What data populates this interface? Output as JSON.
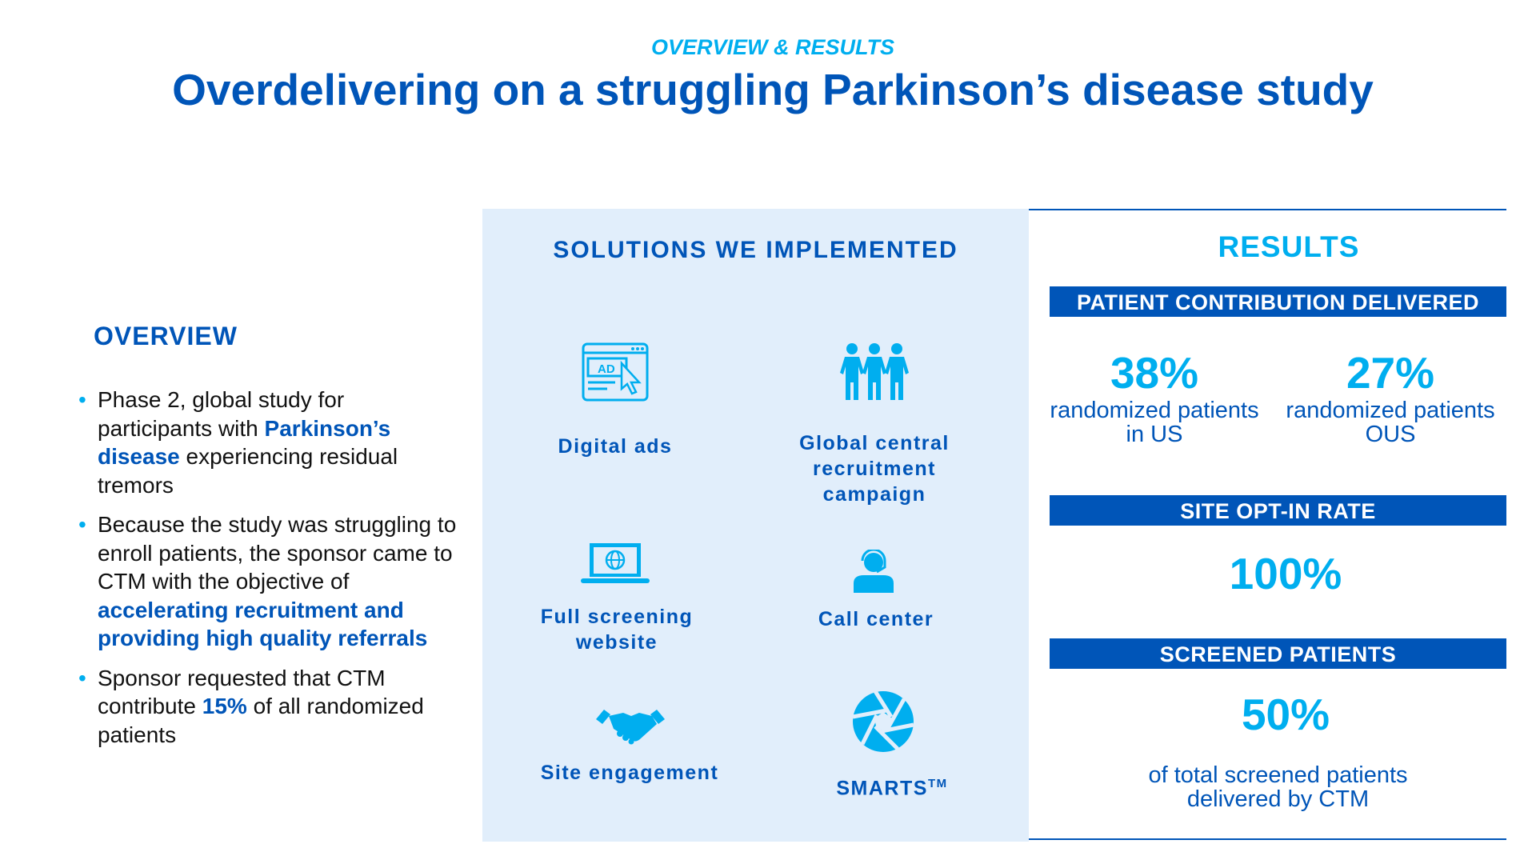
{
  "header": {
    "subtitle": "OVERVIEW & RESULTS",
    "title": "Overdelivering on a struggling Parkinson’s disease study"
  },
  "overview": {
    "heading": "OVERVIEW",
    "bullets": [
      [
        {
          "t": "Phase 2, global study for participants with "
        },
        {
          "t": "Parkinson’s disease",
          "b": true
        },
        {
          "t": " experiencing residual tremors"
        }
      ],
      [
        {
          "t": "Because the study was struggling to enroll patients, the sponsor came to CTM with the objective of "
        },
        {
          "t": "accelerating recruitment and providing high quality referrals",
          "b": true
        }
      ],
      [
        {
          "t": "Sponsor requested that CTM contribute "
        },
        {
          "t": "15%",
          "b": true
        },
        {
          "t": " of all randomized patients"
        }
      ]
    ]
  },
  "solutions": {
    "heading": "SOLUTIONS WE IMPLEMENTED",
    "items": [
      {
        "label": "Digital ads",
        "icon": "ad-click-icon"
      },
      {
        "label": "Global central recruitment campaign",
        "icon": "people-group-icon"
      },
      {
        "label": "Full screening website",
        "icon": "laptop-globe-icon"
      },
      {
        "label": "Call center",
        "icon": "headset-agent-icon"
      },
      {
        "label": "Site engagement",
        "icon": "handshake-icon"
      },
      {
        "label": "SMARTS",
        "sup": "TM",
        "icon": "aperture-icon"
      }
    ]
  },
  "results": {
    "heading": "RESULTS",
    "patient_contribution": {
      "title": "PATIENT CONTRIBUTION DELIVERED",
      "us_value": "38%",
      "us_line1": "randomized patients",
      "us_line2": "in US",
      "ous_value": "27%",
      "ous_line1": "randomized patients",
      "ous_line2": "OUS"
    },
    "site_opt_in": {
      "title": "SITE OPT-IN RATE",
      "value": "100%"
    },
    "screened": {
      "title": "SCREENED PATIENTS",
      "value": "50%",
      "line1": "of total screened patients",
      "line2": "delivered by CTM"
    }
  },
  "colors": {
    "dark_blue": "#0055b8",
    "cyan": "#00aeef",
    "panel": "#e1eefb"
  }
}
